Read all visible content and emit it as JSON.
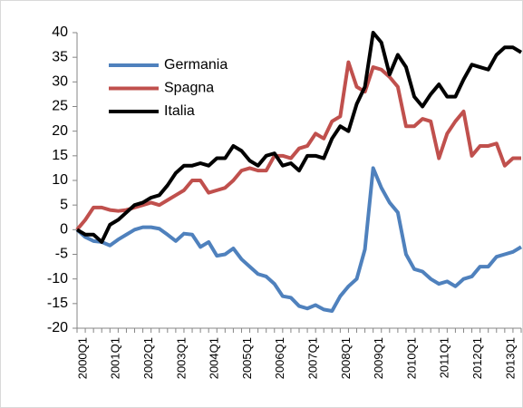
{
  "chart_data": {
    "type": "line",
    "categories": [
      "2000Q1",
      null,
      null,
      null,
      "2001Q1",
      null,
      null,
      null,
      "2002Q1",
      null,
      null,
      null,
      "2003Q1",
      null,
      null,
      null,
      "2004Q1",
      null,
      null,
      null,
      "2005Q1",
      null,
      null,
      null,
      "2006Q1",
      null,
      null,
      null,
      "2007Q1",
      null,
      null,
      null,
      "2008Q1",
      null,
      null,
      null,
      "2009Q1",
      null,
      null,
      null,
      "2010Q1",
      null,
      null,
      null,
      "2011Q1",
      null,
      null,
      null,
      "2012Q1",
      null,
      null,
      null,
      "2013Q1",
      null,
      null
    ],
    "series": [
      {
        "name": "Germania",
        "color": "#4f81bd",
        "values": [
          0,
          -1.5,
          -2.3,
          -2.5,
          -3.2,
          -2,
          -1,
          0,
          0.5,
          0.5,
          0.2,
          -1,
          -2.3,
          -0.8,
          -1,
          -3.5,
          -2.5,
          -5.3,
          -5,
          -3.8,
          -6,
          -7.5,
          -9,
          -9.5,
          -11,
          -13.5,
          -13.8,
          -15.5,
          -16,
          -15.3,
          -16.2,
          -16.5,
          -13.5,
          -11.5,
          -10,
          -4,
          12.5,
          8.5,
          5.5,
          3.5,
          -5,
          -8,
          -8.5,
          -10,
          -11,
          -10.5,
          -11.5,
          -10,
          -9.5,
          -7.5,
          -7.5,
          -5.5,
          -5,
          -4.5,
          -3.5
        ]
      },
      {
        "name": "Spagna",
        "color": "#c0504d",
        "values": [
          0,
          2,
          4.5,
          4.5,
          4,
          3.8,
          4,
          4.5,
          5,
          5.5,
          5,
          6,
          7,
          8,
          10,
          10,
          7.5,
          8,
          8.5,
          10,
          12,
          12.5,
          12,
          12,
          15,
          15,
          14.5,
          16.5,
          17,
          19.5,
          18.5,
          22,
          23,
          34,
          29,
          28,
          33,
          32.5,
          31,
          29,
          21,
          21,
          22.5,
          22,
          14.5,
          19.5,
          22,
          24,
          15,
          17,
          17,
          17.5,
          13,
          14.5,
          14.5
        ]
      },
      {
        "name": "Italia",
        "color": "#000000",
        "values": [
          0,
          -1,
          -1,
          -2.5,
          1,
          2,
          3.5,
          5,
          5.5,
          6.5,
          7,
          9,
          11.5,
          13,
          13,
          13.5,
          13,
          14.5,
          14.5,
          17,
          16,
          14,
          13,
          15,
          15.5,
          13,
          13.5,
          12,
          15,
          15,
          14.5,
          18.5,
          21,
          20,
          25.5,
          29,
          40,
          38,
          31.5,
          35.5,
          33,
          27,
          25,
          27.5,
          29.5,
          27,
          27,
          30.5,
          33.5,
          33,
          32.5,
          35.5,
          37,
          37,
          36
        ]
      }
    ],
    "ylim": [
      -20,
      40
    ],
    "yticks": [
      -20,
      -15,
      -10,
      -5,
      0,
      5,
      10,
      15,
      20,
      25,
      30,
      35,
      40
    ],
    "grid": false,
    "legend": "upper left"
  }
}
